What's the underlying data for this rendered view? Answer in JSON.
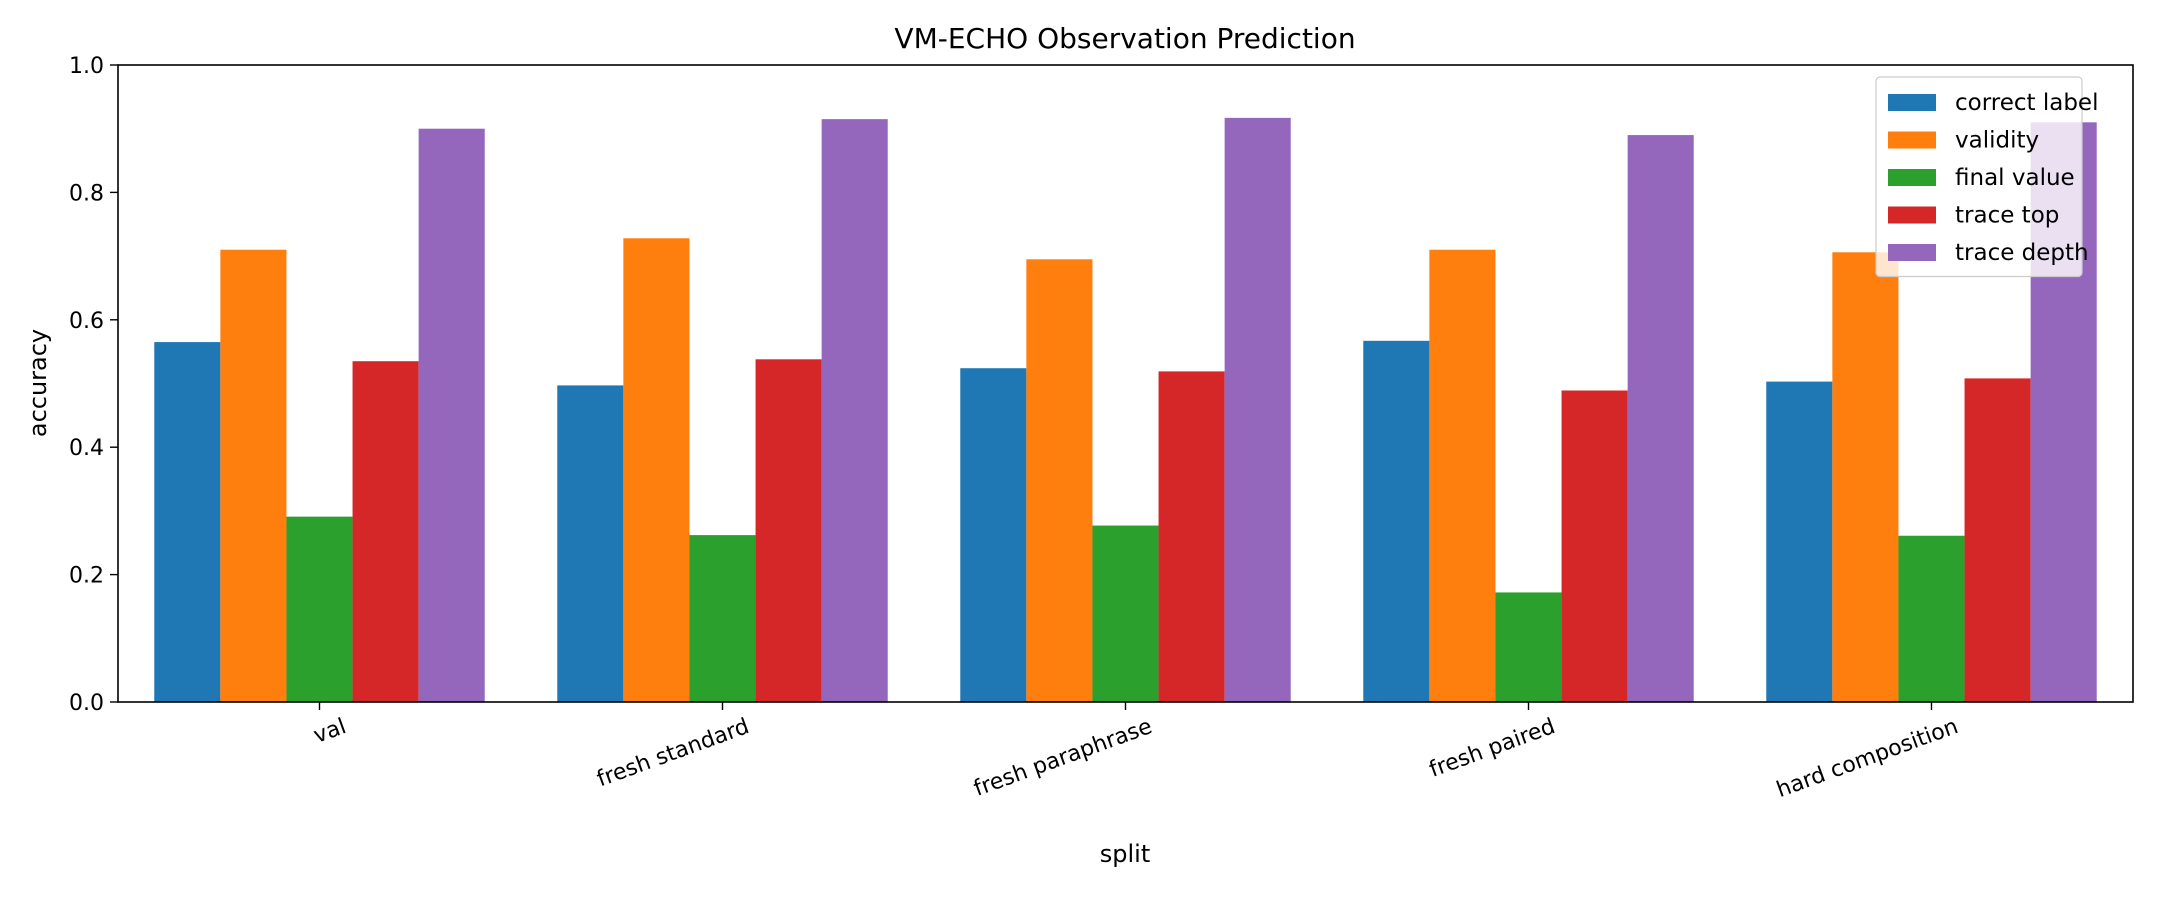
{
  "chart_data": {
    "type": "bar",
    "title": "VM-ECHO Observation Prediction",
    "xlabel": "split",
    "ylabel": "accuracy",
    "ylim": [
      0,
      1.0
    ],
    "yticks": [
      "0.0",
      "0.2",
      "0.4",
      "0.6",
      "0.8",
      "1.0"
    ],
    "grid": false,
    "legend_position": "top-right",
    "categories": [
      "val",
      "fresh standard",
      "fresh paraphrase",
      "fresh paired",
      "hard composition"
    ],
    "series": [
      {
        "name": "correct label",
        "color": "#1f77b4",
        "values": [
          0.565,
          0.497,
          0.524,
          0.567,
          0.503
        ]
      },
      {
        "name": "validity",
        "color": "#ff7f0e",
        "values": [
          0.71,
          0.728,
          0.695,
          0.71,
          0.706
        ]
      },
      {
        "name": "final value",
        "color": "#2ca02c",
        "values": [
          0.291,
          0.262,
          0.277,
          0.172,
          0.261
        ]
      },
      {
        "name": "trace top",
        "color": "#d62728",
        "values": [
          0.535,
          0.538,
          0.519,
          0.489,
          0.508
        ]
      },
      {
        "name": "trace depth",
        "color": "#9467bd",
        "values": [
          0.9,
          0.915,
          0.917,
          0.89,
          0.91
        ]
      }
    ]
  }
}
